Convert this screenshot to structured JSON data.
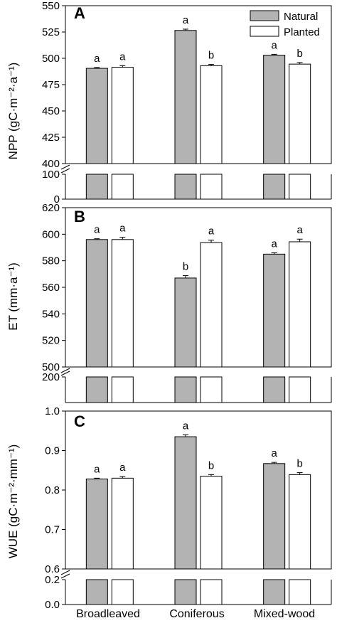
{
  "colors": {
    "natural": "#b3b3b3",
    "planted": "#ffffff",
    "stroke": "#000000"
  },
  "legend": {
    "placement": "top-right",
    "items": [
      "Natural",
      "Planted"
    ]
  },
  "categories": [
    "Broadleaved",
    "Coniferous",
    "Mixed-wood"
  ],
  "chart_data": [
    {
      "type": "bar",
      "panel": "A",
      "ylabel": "NPP (gC·m⁻²·a⁻¹)",
      "categories": [
        "Broadleaved",
        "Coniferous",
        "Mixed-wood"
      ],
      "series": [
        {
          "name": "Natural",
          "values": [
            490.5,
            526.5,
            503.0
          ],
          "errors": [
            0.8,
            1.2,
            0.8
          ],
          "letters": [
            "a",
            "a",
            "a"
          ]
        },
        {
          "name": "Planted",
          "values": [
            491.5,
            493.0,
            494.5
          ],
          "errors": [
            1.5,
            1.2,
            1.5
          ],
          "letters": [
            "a",
            "b",
            "b"
          ]
        }
      ],
      "axis_break": true,
      "upper_ylim": [
        400,
        550
      ],
      "upper_ticks": [
        "400",
        "425",
        "450",
        "475",
        "500",
        "525",
        "550"
      ],
      "lower_ylim": [
        0,
        100
      ],
      "lower_ticks": [
        "0",
        "100"
      ],
      "grid": false
    },
    {
      "type": "bar",
      "panel": "B",
      "ylabel": "ET (mm·a⁻¹)",
      "categories": [
        "Broadleaved",
        "Coniferous",
        "Mixed-wood"
      ],
      "series": [
        {
          "name": "Natural",
          "values": [
            596.0,
            567.0,
            585.0
          ],
          "errors": [
            0.6,
            1.8,
            1.0
          ],
          "letters": [
            "a",
            "b",
            "a"
          ]
        },
        {
          "name": "Planted",
          "values": [
            596.0,
            593.7,
            594.3
          ],
          "errors": [
            1.7,
            1.8,
            2.0
          ],
          "letters": [
            "a",
            "a",
            "a"
          ]
        }
      ],
      "axis_break": true,
      "upper_ylim": [
        500,
        620
      ],
      "upper_ticks": [
        "500",
        "520",
        "540",
        "560",
        "580",
        "600",
        "620"
      ],
      "lower_ylim": [
        0,
        200
      ],
      "lower_ticks": [
        "200"
      ],
      "grid": false
    },
    {
      "type": "bar",
      "panel": "C",
      "ylabel": "WUE (gC·m⁻²·mm⁻¹)",
      "categories": [
        "Broadleaved",
        "Coniferous",
        "Mixed-wood"
      ],
      "series": [
        {
          "name": "Natural",
          "values": [
            0.828,
            0.935,
            0.867
          ],
          "errors": [
            0.002,
            0.005,
            0.003
          ],
          "letters": [
            "a",
            "a",
            "a"
          ]
        },
        {
          "name": "Planted",
          "values": [
            0.83,
            0.835,
            0.839
          ],
          "errors": [
            0.004,
            0.004,
            0.005
          ],
          "letters": [
            "a",
            "b",
            "b"
          ]
        }
      ],
      "axis_break": true,
      "upper_ylim": [
        0.6,
        1.0
      ],
      "upper_ticks": [
        "0.6",
        "0.7",
        "0.8",
        "0.9",
        "1.0"
      ],
      "lower_ylim": [
        0.0,
        0.2
      ],
      "lower_ticks": [
        "0.0",
        "0.2"
      ],
      "grid": false
    }
  ]
}
